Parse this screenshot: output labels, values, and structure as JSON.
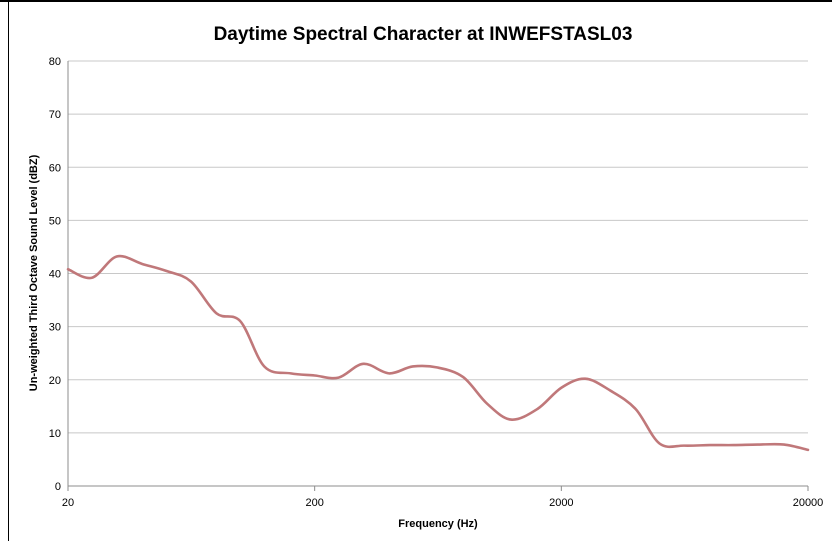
{
  "chart_data": {
    "type": "line",
    "title": "Daytime Spectral Character at INWEFSTASL03",
    "xlabel": "Frequency (Hz)",
    "ylabel": "Un-weighted Third Octave Sound Level (dBZ)",
    "xscale": "log",
    "xlim": [
      20,
      20000
    ],
    "ylim": [
      0,
      80
    ],
    "xticks": [
      20,
      200,
      2000,
      20000
    ],
    "yticks": [
      0,
      10,
      20,
      30,
      40,
      50,
      60,
      70,
      80
    ],
    "grid": "horizontal",
    "legend": "none",
    "series": [
      {
        "color": "#c0787a",
        "x": [
          20,
          25,
          31.5,
          40,
          50,
          63,
          80,
          100,
          125,
          160,
          200,
          250,
          315,
          400,
          500,
          630,
          800,
          1000,
          1250,
          1600,
          2000,
          2500,
          3150,
          4000,
          5000,
          6300,
          8000,
          10000,
          12500,
          16000,
          20000
        ],
        "y": [
          40.8,
          39.2,
          43.2,
          41.8,
          40.5,
          38.5,
          32.5,
          31.0,
          22.5,
          21.2,
          20.8,
          20.4,
          23.0,
          21.2,
          22.5,
          22.3,
          20.5,
          15.5,
          12.5,
          14.5,
          18.5,
          20.2,
          18.0,
          14.5,
          8.0,
          7.6,
          7.7,
          7.7,
          7.8,
          7.8,
          6.8
        ]
      }
    ]
  }
}
